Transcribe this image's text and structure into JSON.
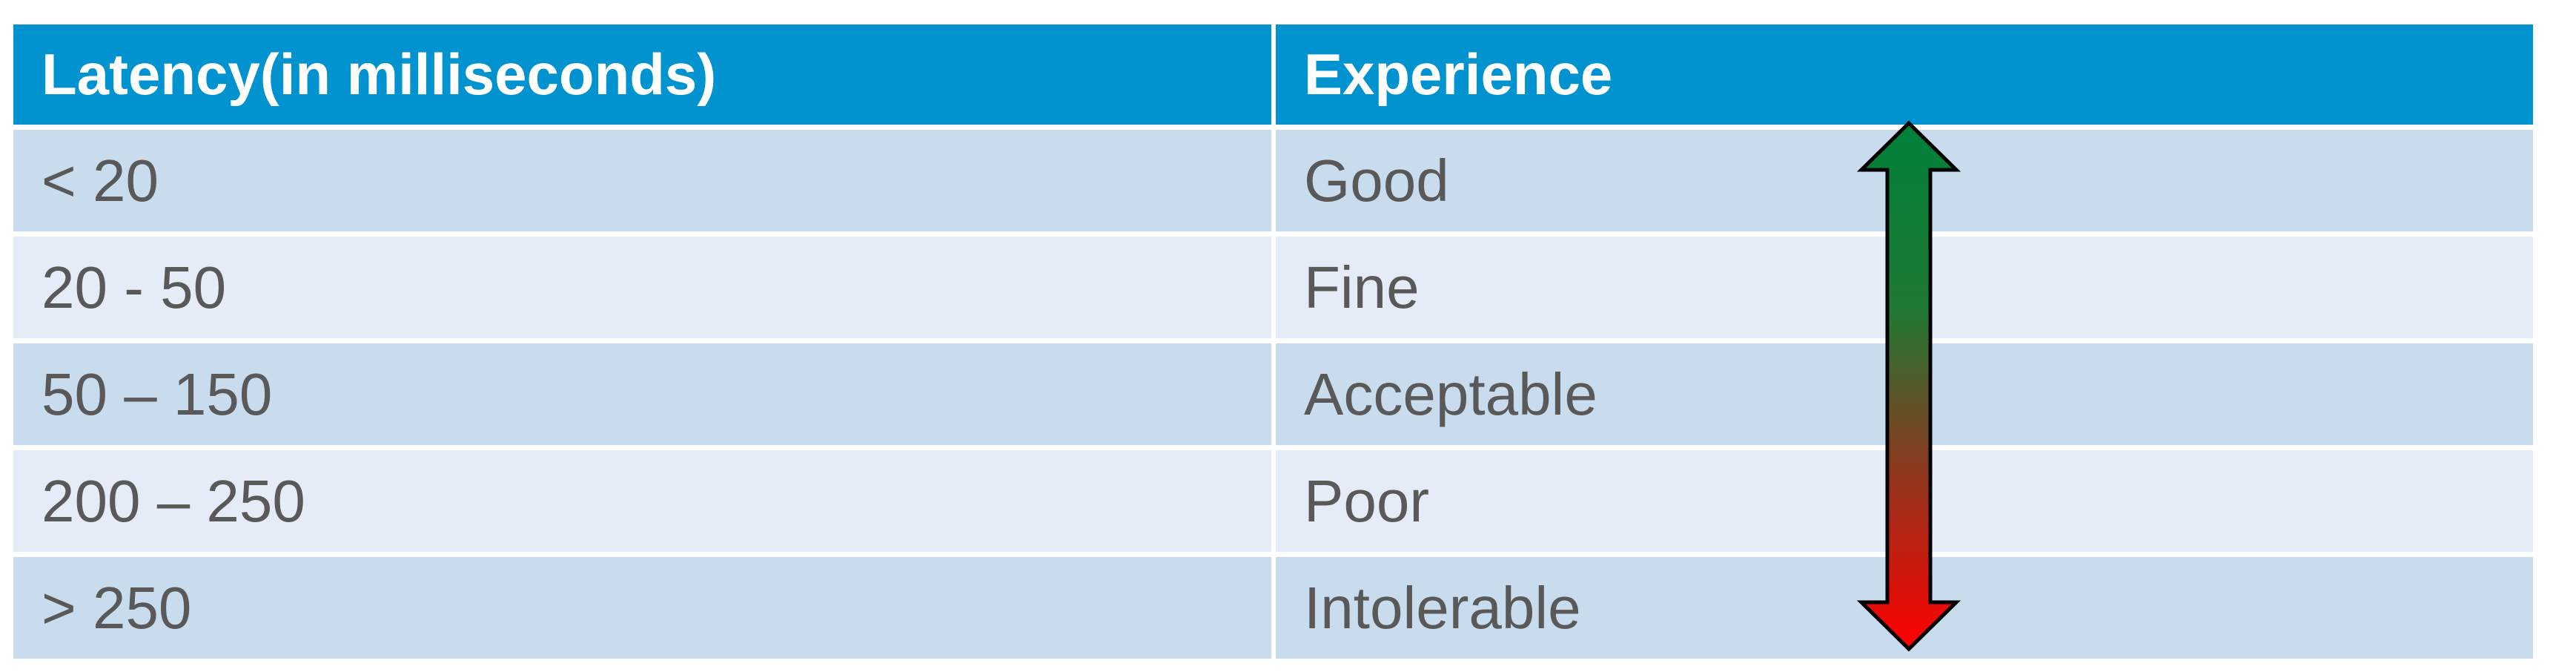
{
  "table": {
    "header": [
      "Latency(in milliseconds)",
      "Experience"
    ],
    "rows": [
      [
        "< 20",
        "Good"
      ],
      [
        "20 - 50",
        "Fine"
      ],
      [
        "50 – 150",
        "Acceptable"
      ],
      [
        "200 – 250",
        "Poor"
      ],
      [
        "> 250",
        "Intolerable"
      ]
    ]
  }
}
